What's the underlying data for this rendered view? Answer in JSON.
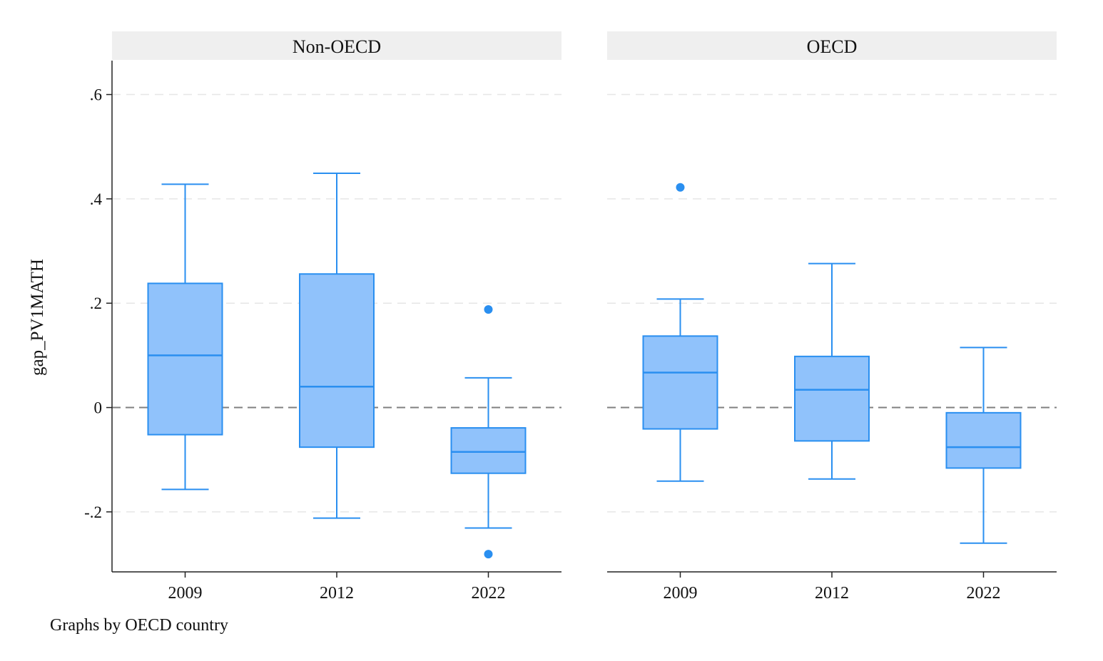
{
  "chart_data": {
    "type": "box",
    "ylabel": "gap_PV1MATH",
    "ylim": [
      -0.315,
      0.665
    ],
    "yticks": [
      -0.2,
      0,
      0.2,
      0.4,
      0.6
    ],
    "ytick_labels": [
      "-.2",
      "0",
      ".2",
      ".4",
      ".6"
    ],
    "reference_line": 0,
    "grid": "horizontal dashed",
    "note": "Graphs by OECD country",
    "categories": [
      "2009",
      "2012",
      "2022"
    ],
    "colors": {
      "box_fill": "#90c2fb",
      "box_stroke": "#2a8ff0",
      "panel_header": "#efefef",
      "grid": "#e6e6e6",
      "reference": "#808080"
    },
    "panels": [
      {
        "name": "Non-OECD",
        "boxes": [
          {
            "category": "2009",
            "whisker_low": -0.157,
            "q1": -0.052,
            "median": 0.1,
            "q3": 0.238,
            "whisker_high": 0.428,
            "outliers": []
          },
          {
            "category": "2012",
            "whisker_low": -0.212,
            "q1": -0.076,
            "median": 0.04,
            "q3": 0.256,
            "whisker_high": 0.449,
            "outliers": []
          },
          {
            "category": "2022",
            "whisker_low": -0.231,
            "q1": -0.126,
            "median": -0.085,
            "q3": -0.039,
            "whisker_high": 0.057,
            "outliers": [
              0.188,
              -0.281
            ]
          }
        ]
      },
      {
        "name": "OECD",
        "boxes": [
          {
            "category": "2009",
            "whisker_low": -0.141,
            "q1": -0.041,
            "median": 0.067,
            "q3": 0.137,
            "whisker_high": 0.208,
            "outliers": [
              0.422
            ]
          },
          {
            "category": "2012",
            "whisker_low": -0.137,
            "q1": -0.064,
            "median": 0.034,
            "q3": 0.098,
            "whisker_high": 0.276,
            "outliers": []
          },
          {
            "category": "2022",
            "whisker_low": -0.26,
            "q1": -0.116,
            "median": -0.076,
            "q3": -0.01,
            "whisker_high": 0.115,
            "outliers": []
          }
        ]
      }
    ]
  }
}
